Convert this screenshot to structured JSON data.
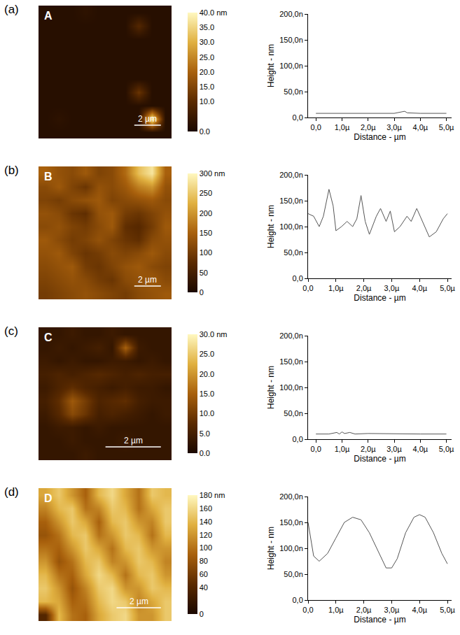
{
  "chart_data": [
    {
      "type": "heatmap",
      "panel": "(a)",
      "label": "A",
      "xlim": [
        0,
        10
      ],
      "ylim": [
        0,
        10
      ],
      "tick_labels": false,
      "scale_bar": {
        "value": 2,
        "label": "2 µm"
      },
      "zlim": [
        0,
        40
      ],
      "zticks": [
        {
          "value": 0,
          "label": "0.0"
        },
        {
          "value": 10,
          "label": "10.0"
        },
        {
          "value": 15,
          "label": "15.0"
        },
        {
          "value": 20,
          "label": "20.0"
        },
        {
          "value": 25,
          "label": "25.0"
        },
        {
          "value": 30,
          "label": "30.0"
        },
        {
          "value": 35,
          "label": "35.0"
        },
        {
          "value": 40,
          "label": "40.0 nm"
        }
      ],
      "cells": [
        [
          2,
          2,
          2,
          3,
          2,
          2,
          2,
          2,
          2,
          2
        ],
        [
          2,
          2,
          2,
          2,
          2,
          2,
          2,
          9,
          2,
          2
        ],
        [
          2,
          2,
          2,
          2,
          2,
          2,
          2,
          2,
          2,
          2
        ],
        [
          2,
          2,
          2,
          2,
          2,
          2,
          2,
          2,
          2,
          2
        ],
        [
          2,
          2,
          2,
          2,
          2,
          2,
          2,
          2,
          2,
          2
        ],
        [
          2,
          2,
          2,
          2,
          2,
          2,
          2,
          2,
          2,
          2
        ],
        [
          2,
          2,
          2,
          2,
          2,
          2,
          2,
          12,
          2,
          2
        ],
        [
          2,
          2,
          2,
          2,
          2,
          2,
          2,
          2,
          2,
          2
        ],
        [
          2,
          3,
          2,
          2,
          2,
          2,
          2,
          2,
          38,
          2
        ],
        [
          2,
          2,
          2,
          2,
          2,
          2,
          2,
          2,
          2,
          2
        ]
      ]
    },
    {
      "type": "line",
      "x": [
        0,
        1,
        2,
        3,
        3.3,
        3.4,
        3.5,
        4,
        5
      ],
      "values": [
        8,
        8,
        8,
        8,
        11,
        12,
        9,
        8,
        8
      ],
      "color": "#555555",
      "xlim": [
        -0.3,
        5.2
      ],
      "ylim": [
        0,
        200
      ],
      "xticks": [
        {
          "value": 0,
          "label": "0,0"
        },
        {
          "value": 1,
          "label": "1,0µ"
        },
        {
          "value": 2,
          "label": "2,0µ"
        },
        {
          "value": 3,
          "label": "3,0µ"
        },
        {
          "value": 4,
          "label": "4,0µ"
        },
        {
          "value": 5,
          "label": "5,0µ"
        }
      ],
      "yticks": [
        {
          "value": 0,
          "label": "0,0"
        },
        {
          "value": 50,
          "label": "50,0n"
        },
        {
          "value": 100,
          "label": "100,0n"
        },
        {
          "value": 150,
          "label": "150,0n"
        },
        {
          "value": 200,
          "label": "200,0n"
        }
      ],
      "x_label": "Distance - µm",
      "y_label": "Height - nm"
    },
    {
      "type": "heatmap",
      "panel": "(b)",
      "label": "B",
      "xlim": [
        0,
        10
      ],
      "ylim": [
        0,
        10
      ],
      "tick_labels": false,
      "scale_bar": {
        "value": 2,
        "label": "2 µm"
      },
      "zlim": [
        0,
        300
      ],
      "zticks": [
        0,
        50,
        100,
        150,
        200,
        250,
        {
          "value": 300,
          "label": "300 nm"
        }
      ],
      "cells": [
        [
          150,
          130,
          120,
          140,
          110,
          120,
          160,
          240,
          280,
          150
        ],
        [
          120,
          140,
          110,
          90,
          130,
          120,
          140,
          180,
          200,
          130
        ],
        [
          110,
          100,
          120,
          130,
          140,
          110,
          120,
          130,
          140,
          120
        ],
        [
          130,
          120,
          90,
          80,
          130,
          140,
          100,
          90,
          110,
          130
        ],
        [
          120,
          130,
          110,
          100,
          120,
          140,
          80,
          70,
          100,
          140
        ],
        [
          140,
          120,
          100,
          110,
          130,
          110,
          90,
          80,
          120,
          130
        ],
        [
          130,
          140,
          110,
          90,
          100,
          120,
          110,
          120,
          140,
          120
        ],
        [
          120,
          130,
          140,
          100,
          90,
          110,
          130,
          140,
          120,
          110
        ],
        [
          110,
          120,
          130,
          120,
          100,
          90,
          120,
          130,
          140,
          120
        ],
        [
          100,
          110,
          120,
          130,
          120,
          110,
          100,
          120,
          130,
          140
        ]
      ]
    },
    {
      "type": "line",
      "x": [
        0,
        0.2,
        0.4,
        0.55,
        0.75,
        0.9,
        1.0,
        1.2,
        1.4,
        1.6,
        1.75,
        1.9,
        2.05,
        2.2,
        2.45,
        2.6,
        2.8,
        2.95,
        3.1,
        3.3,
        3.55,
        3.7,
        3.9,
        4.1,
        4.35,
        4.6,
        4.85,
        5.0
      ],
      "values": [
        125,
        120,
        100,
        120,
        172,
        140,
        92,
        100,
        110,
        100,
        115,
        160,
        110,
        85,
        120,
        135,
        110,
        130,
        90,
        100,
        120,
        110,
        135,
        110,
        80,
        90,
        115,
        125
      ],
      "color": "#555555",
      "xlim": [
        0,
        5.15
      ],
      "ylim": [
        0,
        200
      ],
      "xticks": [
        {
          "value": 0,
          "label": "0,0"
        },
        {
          "value": 1,
          "label": "1,0µ"
        },
        {
          "value": 2,
          "label": "2,0µ"
        },
        {
          "value": 3,
          "label": "3,0µ"
        },
        {
          "value": 4,
          "label": "4,0µ"
        },
        {
          "value": 5,
          "label": "5,0µ"
        }
      ],
      "yticks": [
        {
          "value": 0,
          "label": "0,0"
        },
        {
          "value": 50,
          "label": "50,0n"
        },
        {
          "value": 100,
          "label": "100,0n"
        },
        {
          "value": 150,
          "label": "150,0n"
        },
        {
          "value": 200,
          "label": "200,0n"
        }
      ],
      "x_label": "Distance - µm",
      "y_label": "Height - nm"
    },
    {
      "type": "heatmap",
      "panel": "(c)",
      "label": "C",
      "xlim": [
        0,
        4.8
      ],
      "ylim": [
        0,
        4.8
      ],
      "tick_labels": false,
      "scale_bar": {
        "value": 2,
        "label": "2 µm"
      },
      "zlim": [
        0,
        30
      ],
      "zticks": [
        {
          "value": 0,
          "label": "0.0"
        },
        {
          "value": 5,
          "label": "5.0"
        },
        {
          "value": 10,
          "label": "10.0"
        },
        {
          "value": 15,
          "label": "15.0"
        },
        {
          "value": 20,
          "label": "20.0"
        },
        {
          "value": 25,
          "label": "25.0"
        },
        {
          "value": 30,
          "label": "30.0 nm"
        }
      ],
      "cells": [
        [
          3,
          3,
          4,
          3,
          3,
          4,
          3,
          3,
          3,
          3
        ],
        [
          3,
          4,
          3,
          4,
          5,
          3,
          15,
          4,
          3,
          3
        ],
        [
          4,
          3,
          4,
          3,
          3,
          4,
          4,
          3,
          4,
          3
        ],
        [
          5,
          6,
          5,
          6,
          7,
          6,
          5,
          6,
          5,
          5
        ],
        [
          4,
          6,
          8,
          6,
          5,
          4,
          5,
          4,
          4,
          3
        ],
        [
          5,
          8,
          14,
          10,
          6,
          7,
          8,
          5,
          4,
          4
        ],
        [
          4,
          7,
          12,
          9,
          5,
          6,
          5,
          4,
          3,
          4
        ],
        [
          3,
          4,
          4,
          3,
          4,
          3,
          3,
          3,
          3,
          3
        ],
        [
          3,
          3,
          4,
          3,
          3,
          3,
          4,
          3,
          3,
          3
        ],
        [
          3,
          3,
          3,
          4,
          3,
          3,
          3,
          3,
          3,
          3
        ]
      ]
    },
    {
      "type": "line",
      "x": [
        0,
        0.5,
        0.8,
        0.9,
        1.0,
        1.1,
        1.3,
        1.5,
        2,
        3,
        4,
        5
      ],
      "values": [
        10,
        10,
        13,
        10,
        14,
        11,
        13,
        10,
        11,
        10,
        10,
        10
      ],
      "color": "#555555",
      "xlim": [
        -0.3,
        5.2
      ],
      "ylim": [
        0,
        200
      ],
      "xticks": [
        {
          "value": 0,
          "label": "0,0"
        },
        {
          "value": 1,
          "label": "1,0µ"
        },
        {
          "value": 2,
          "label": "2,0µ"
        },
        {
          "value": 3,
          "label": "3,0µ"
        },
        {
          "value": 4,
          "label": "4,0µ"
        },
        {
          "value": 5,
          "label": "5,0µ"
        }
      ],
      "yticks": [
        {
          "value": 0,
          "label": "0,0"
        },
        {
          "value": 50,
          "label": "50,0n"
        },
        {
          "value": 100,
          "label": "100,0n"
        },
        {
          "value": 150,
          "label": "150,0n"
        },
        {
          "value": 200,
          "label": "200,0n"
        }
      ],
      "x_label": "Distance - µm",
      "y_label": "Height - nm"
    },
    {
      "type": "heatmap",
      "panel": "(d)",
      "label": "D",
      "xlim": [
        0,
        6
      ],
      "ylim": [
        0,
        6
      ],
      "tick_labels": false,
      "scale_bar": {
        "value": 2,
        "label": "2 µm"
      },
      "zlim": [
        0,
        180
      ],
      "zticks": [
        0,
        40,
        60,
        80,
        100,
        120,
        140,
        160,
        {
          "value": 180,
          "label": "180 nm"
        }
      ],
      "cells": [
        [
          130,
          150,
          120,
          90,
          140,
          160,
          130,
          100,
          150,
          140
        ],
        [
          110,
          140,
          150,
          100,
          110,
          150,
          140,
          100,
          130,
          150
        ],
        [
          90,
          120,
          150,
          130,
          90,
          140,
          150,
          120,
          110,
          150
        ],
        [
          80,
          100,
          140,
          150,
          100,
          120,
          150,
          140,
          100,
          140
        ],
        [
          100,
          90,
          120,
          150,
          130,
          100,
          140,
          150,
          120,
          120
        ],
        [
          120,
          80,
          100,
          140,
          150,
          110,
          120,
          150,
          140,
          110
        ],
        [
          140,
          100,
          90,
          130,
          160,
          140,
          100,
          140,
          150,
          120
        ],
        [
          150,
          120,
          80,
          110,
          150,
          160,
          120,
          120,
          150,
          140
        ],
        [
          140,
          130,
          90,
          100,
          140,
          160,
          150,
          110,
          130,
          150
        ],
        [
          40,
          140,
          100,
          90,
          130,
          150,
          160,
          120,
          120,
          150
        ]
      ]
    },
    {
      "type": "line",
      "x": [
        0,
        0.1,
        0.2,
        0.4,
        0.7,
        1.0,
        1.3,
        1.6,
        1.9,
        2.2,
        2.5,
        2.8,
        3.0,
        3.2,
        3.5,
        3.8,
        4.0,
        4.2,
        4.5,
        4.8,
        5.0
      ],
      "values": [
        150,
        120,
        85,
        75,
        90,
        120,
        150,
        160,
        155,
        130,
        95,
        62,
        62,
        80,
        130,
        160,
        165,
        160,
        130,
        90,
        70
      ],
      "color": "#555555",
      "xlim": [
        0,
        5.15
      ],
      "ylim": [
        0,
        200
      ],
      "xticks": [
        {
          "value": 0,
          "label": "0,0"
        },
        {
          "value": 1,
          "label": "1,0µ"
        },
        {
          "value": 2,
          "label": "2,0µ"
        },
        {
          "value": 3,
          "label": "3,0µ"
        },
        {
          "value": 4,
          "label": "4,0µ"
        },
        {
          "value": 5,
          "label": "5,0µ"
        }
      ],
      "yticks": [
        {
          "value": 0,
          "label": "0,0"
        },
        {
          "value": 50,
          "label": "50,0n"
        },
        {
          "value": 100,
          "label": "100,0n"
        },
        {
          "value": 150,
          "label": "150,0n"
        },
        {
          "value": 200,
          "label": "200,0n"
        }
      ],
      "x_label": "Distance - µm",
      "y_label": "Height - nm"
    }
  ]
}
